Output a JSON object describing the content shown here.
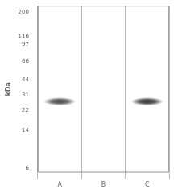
{
  "chart_data": {
    "type": "scatter",
    "ylabel": "kDa",
    "categories": [
      "A",
      "B",
      "C"
    ],
    "values": [
      27,
      null,
      27
    ],
    "colors": [
      "#484848",
      null,
      "#333333"
    ],
    "log": "y",
    "ylim": [
      5.5,
      230
    ],
    "yticks": [
      200,
      116,
      97,
      66,
      44,
      31,
      22,
      14,
      6
    ],
    "grid": "x"
  }
}
